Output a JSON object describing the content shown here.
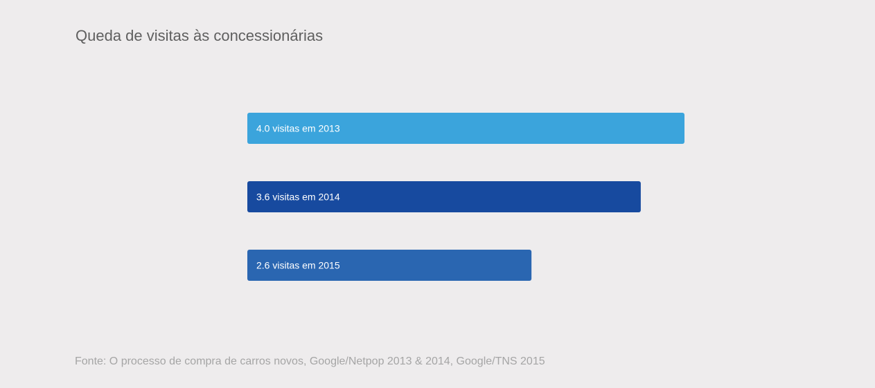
{
  "title": "Queda de visitas às concessionárias",
  "source": "Fonte: O processo de compra de carros novos, Google/Netpop 2013 & 2014, Google/TNS 2015",
  "chart_data": {
    "type": "bar",
    "orientation": "horizontal",
    "title": "Queda de visitas às concessionárias",
    "xlabel": "",
    "ylabel": "",
    "categories": [
      "2013",
      "2014",
      "2015"
    ],
    "values": [
      4.0,
      3.6,
      2.6
    ],
    "labels": [
      "4.0 visitas em 2013",
      "3.6 visitas em 2014",
      "2.6 visitas em 2015"
    ],
    "colors": [
      "#3ba4dc",
      "#174a9f",
      "#2a66b1"
    ],
    "xlim": [
      0,
      4.0
    ],
    "grid": false,
    "legend": "none"
  }
}
